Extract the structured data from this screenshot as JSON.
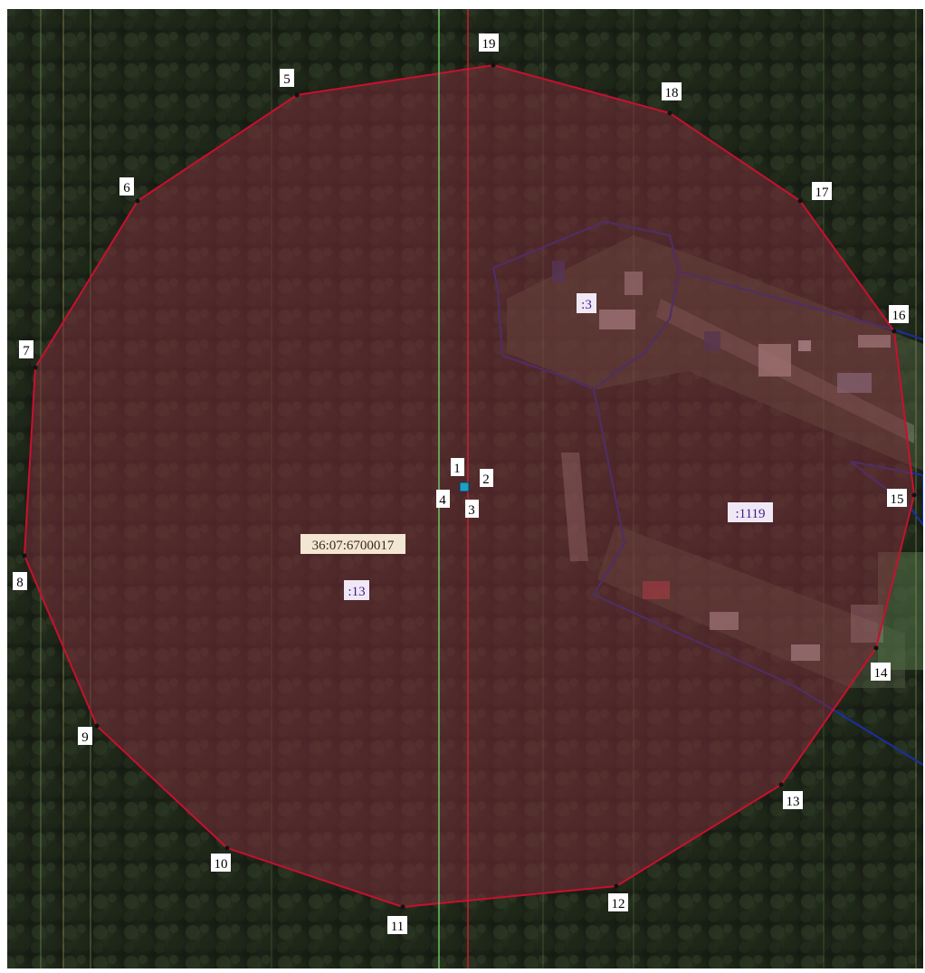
{
  "map": {
    "block_label": "36:07:6700017",
    "parcels": [
      {
        "id": "parcel-13",
        "label": ":13"
      },
      {
        "id": "parcel-3",
        "label": ":3"
      },
      {
        "id": "parcel-1119",
        "label": ":1119"
      }
    ],
    "boundary_vertices": [
      "5",
      "6",
      "7",
      "8",
      "9",
      "10",
      "11",
      "12",
      "13",
      "14",
      "15",
      "16",
      "17",
      "18",
      "19"
    ],
    "center_points": [
      "1",
      "2",
      "3",
      "4"
    ],
    "colors": {
      "boundary_line": "#c8102e",
      "boundary_fill": "#7a2e3a",
      "parcel_line": "#1a2fa0",
      "grid_green": "#6fd06a",
      "grid_red": "#d02030",
      "label_bg_block": "#f3e6d2",
      "label_bg_parcel": "#f1e8f6",
      "parcel_text": "#3b1f8a",
      "point_marker": "#1f9fc2"
    }
  }
}
